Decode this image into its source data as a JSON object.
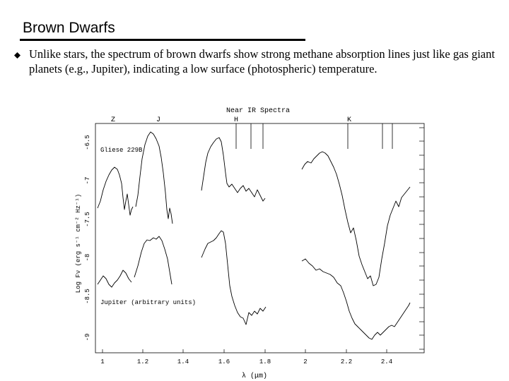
{
  "slide": {
    "title": "Brown Dwarfs",
    "bullet_icon": "diamond-bullet-icon",
    "bullet_text": "Unlike stars, the spectrum of brown dwarfs show strong methane absorption lines just like gas giant planets (e.g., Jupiter), indicating a low surface (photospheric) temperature."
  },
  "figure": {
    "header": "Near IR Spectra",
    "band_labels": [
      "Z",
      "J",
      "H",
      "K"
    ],
    "ylabel": "Log Fν (erg s⁻¹ cm⁻² Hz⁻¹)",
    "xlabel": "λ (μm)",
    "xticks": [
      "1",
      "1.2",
      "1.4",
      "1.6",
      "1.8",
      "2",
      "2.2",
      "2.4"
    ],
    "yticks": [
      "-6.5",
      "-7",
      "-7.5",
      "-8",
      "-8.5",
      "-9"
    ],
    "series_labels": [
      "Gliese 229B",
      "Jupiter (arbitrary units)"
    ]
  }
}
